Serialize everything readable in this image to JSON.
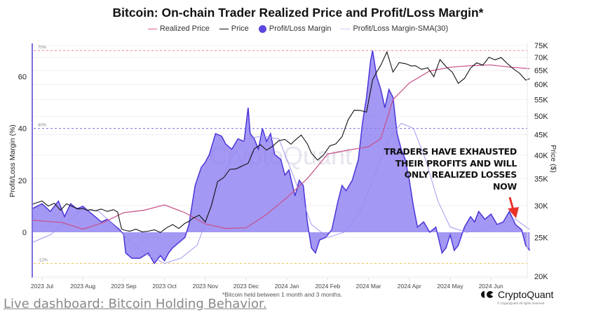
{
  "page": {
    "footer_link": "Live dashboard: Bitcoin Holding Behavior."
  },
  "chart_data": {
    "type": "line",
    "title": "Bitcoin: On-chain Trader Realized Price and Profit/Loss Margin*",
    "footnote": "*Bitcoin held between 1 month and 3 months.",
    "brand": "CryptoQuant",
    "copyright": "© CryptoQuant All rights reserved.",
    "watermark": "CryptoQuant",
    "legend_position": "top-center",
    "legend": [
      {
        "name": "Realized Price",
        "kind": "line",
        "color": "#d85a8c"
      },
      {
        "name": "Price",
        "kind": "line",
        "color": "#111111"
      },
      {
        "name": "Profit/Loss Margin",
        "kind": "dot",
        "color": "#5b47e0"
      },
      {
        "name": "Profit/Loss Margin-SMA(30)",
        "kind": "line",
        "color": "#9a8ef0"
      }
    ],
    "x_ticks": [
      "2023 Jul",
      "2023 Aug",
      "2023 Sep",
      "2023 Oct",
      "2023 Nov",
      "2023 Dec",
      "2024 Jan",
      "2024 Feb",
      "2024 Mar",
      "2024 Apr",
      "2024 May",
      "2024 Jun"
    ],
    "x_range": [
      -0.25,
      12.0
    ],
    "y_left": {
      "label": "Profit/Loss Margin (%)",
      "ticks": [
        0,
        20,
        40,
        60
      ],
      "range": [
        -17,
        76
      ]
    },
    "y_right": {
      "label": "Price ($)",
      "scale": "log",
      "ticks": [
        "20K",
        "25K",
        "30K",
        "35K",
        "40K",
        "45K",
        "50K",
        "55K",
        "60K",
        "65K",
        "70K",
        "75K"
      ],
      "tick_values": [
        20000,
        25000,
        30000,
        35000,
        40000,
        45000,
        50000,
        55000,
        60000,
        65000,
        70000,
        75000
      ],
      "range": [
        20000,
        76000
      ]
    },
    "reference_lines": [
      {
        "label": "70%",
        "value": 70,
        "color": "#e58a8a"
      },
      {
        "label": "40%",
        "value": 40,
        "color": "#7b6fe0"
      },
      {
        "label": "-12%",
        "value": -12,
        "color": "#f0c060"
      }
    ],
    "annotation": {
      "lines": [
        "TRADERS HAVE EXHAUSTED",
        "THEIR PROFITS AND WILL",
        "ONLY REALIZED LOSSES",
        "NOW"
      ],
      "arrow_color": "#e8322a"
    },
    "series": [
      {
        "name": "Profit/Loss Margin",
        "axis": "left",
        "x": [
          -0.25,
          0,
          0.2,
          0.4,
          0.55,
          0.7,
          0.85,
          1.0,
          1.15,
          1.3,
          1.45,
          1.6,
          1.75,
          1.9,
          2.0,
          2.05,
          2.2,
          2.4,
          2.6,
          2.75,
          2.9,
          3.0,
          3.1,
          3.2,
          3.35,
          3.5,
          3.6,
          3.75,
          3.9,
          4.0,
          4.1,
          4.25,
          4.4,
          4.5,
          4.65,
          4.8,
          4.95,
          5.05,
          5.1,
          5.2,
          5.3,
          5.4,
          5.5,
          5.6,
          5.7,
          5.85,
          5.95,
          6.05,
          6.2,
          6.3,
          6.4,
          6.5,
          6.6,
          6.7,
          6.8,
          6.95,
          7.1,
          7.25,
          7.35,
          7.45,
          7.6,
          7.75,
          7.85,
          7.95,
          8.05,
          8.1,
          8.2,
          8.3,
          8.4,
          8.5,
          8.6,
          8.7,
          8.8,
          8.9,
          9.0,
          9.1,
          9.2,
          9.35,
          9.5,
          9.65,
          9.8,
          9.9,
          10.0,
          10.1,
          10.2,
          10.35,
          10.5,
          10.6,
          10.7,
          10.85,
          11.0,
          11.15,
          11.3,
          11.45,
          11.6,
          11.75,
          11.85,
          11.95
        ],
        "values": [
          9,
          11,
          8,
          12,
          6,
          11,
          9,
          10,
          8,
          6,
          4,
          5,
          3,
          1,
          -1,
          -8,
          -10,
          -10,
          -8,
          -12,
          -9,
          -11,
          -8,
          -6,
          -4,
          -2,
          3,
          18,
          25,
          27,
          30,
          38,
          37,
          34,
          32,
          36,
          35,
          48,
          38,
          36,
          32,
          40,
          35,
          38,
          30,
          28,
          22,
          24,
          14,
          20,
          18,
          4,
          -6,
          -8,
          -3,
          -2,
          1,
          12,
          18,
          16,
          20,
          28,
          42,
          52,
          66,
          70,
          60,
          55,
          48,
          55,
          52,
          38,
          32,
          28,
          20,
          10,
          2,
          4,
          0,
          2,
          -8,
          -6,
          -1,
          -7,
          -5,
          2,
          6,
          4,
          8,
          5,
          7,
          3,
          4,
          8,
          3,
          1,
          -5,
          -7
        ]
      },
      {
        "name": "Profit/Loss Margin-SMA(30)",
        "axis": "left",
        "x": [
          -0.25,
          0.2,
          0.6,
          1.0,
          1.4,
          1.8,
          2.2,
          2.6,
          3.0,
          3.4,
          3.8,
          4.2,
          4.6,
          5.0,
          5.4,
          5.8,
          6.2,
          6.6,
          7.0,
          7.4,
          7.8,
          8.2,
          8.5,
          8.8,
          9.1,
          9.4,
          9.7,
          10.0,
          10.4,
          10.8,
          11.2,
          11.6,
          11.95
        ],
        "values": [
          -4,
          -1,
          4,
          9,
          8,
          2,
          -4,
          -9,
          -12,
          -10,
          -5,
          12,
          28,
          36,
          37,
          36,
          20,
          3,
          -2,
          0,
          8,
          24,
          36,
          42,
          40,
          28,
          12,
          2,
          0,
          1,
          3,
          5,
          1
        ]
      },
      {
        "name": "Price",
        "axis": "right",
        "x": [
          -0.25,
          0,
          0.15,
          0.3,
          0.45,
          0.6,
          0.75,
          0.9,
          1.0,
          1.1,
          1.2,
          1.3,
          1.45,
          1.6,
          1.75,
          1.85,
          1.95,
          2.05,
          2.15,
          2.3,
          2.45,
          2.6,
          2.75,
          2.9,
          3.05,
          3.2,
          3.35,
          3.5,
          3.6,
          3.7,
          3.85,
          4.0,
          4.15,
          4.3,
          4.45,
          4.6,
          4.75,
          4.9,
          5.05,
          5.2,
          5.35,
          5.5,
          5.65,
          5.8,
          5.95,
          6.1,
          6.2,
          6.35,
          6.5,
          6.6,
          6.75,
          6.9,
          7.05,
          7.2,
          7.35,
          7.5,
          7.65,
          7.8,
          7.95,
          8.1,
          8.2,
          8.3,
          8.45,
          8.6,
          8.75,
          8.9,
          9.05,
          9.15,
          9.3,
          9.45,
          9.6,
          9.75,
          9.9,
          10.05,
          10.2,
          10.35,
          10.5,
          10.65,
          10.8,
          10.95,
          11.1,
          11.25,
          11.4,
          11.55,
          11.7,
          11.85,
          11.95
        ],
        "values": [
          30200,
          30800,
          29900,
          30400,
          29200,
          30300,
          29800,
          29400,
          29500,
          29200,
          29300,
          29100,
          29400,
          29000,
          29300,
          28900,
          26200,
          26000,
          25900,
          26200,
          25800,
          25900,
          26100,
          25700,
          26400,
          26900,
          26300,
          27100,
          27400,
          27900,
          28400,
          27300,
          30000,
          34400,
          35200,
          36900,
          37000,
          37600,
          38200,
          41500,
          42500,
          41200,
          42100,
          43500,
          43800,
          42600,
          43600,
          44900,
          42700,
          40500,
          38900,
          40100,
          42200,
          42700,
          44500,
          49000,
          51800,
          51700,
          51200,
          61600,
          64400,
          67000,
          72300,
          64400,
          68000,
          67600,
          66700,
          66800,
          65400,
          66000,
          62700,
          69200,
          66400,
          64400,
          60400,
          62100,
          65900,
          67900,
          67000,
          70100,
          69100,
          70000,
          67600,
          65600,
          64000,
          61500,
          62000
        ]
      },
      {
        "name": "Realized Price",
        "axis": "right",
        "x": [
          -0.25,
          0.5,
          1.0,
          1.5,
          2.0,
          2.5,
          3.0,
          3.5,
          4.0,
          4.5,
          5.0,
          5.5,
          6.0,
          6.5,
          7.0,
          7.5,
          8.0,
          8.3,
          8.6,
          9.0,
          9.5,
          10.0,
          10.5,
          11.0,
          11.5,
          11.95
        ],
        "values": [
          27600,
          27200,
          26200,
          27200,
          28800,
          29200,
          30100,
          28800,
          27000,
          26300,
          26400,
          28500,
          31400,
          35000,
          40300,
          41200,
          42000,
          44000,
          55000,
          60500,
          64800,
          66200,
          66800,
          67100,
          66200,
          65700
        ]
      }
    ]
  }
}
